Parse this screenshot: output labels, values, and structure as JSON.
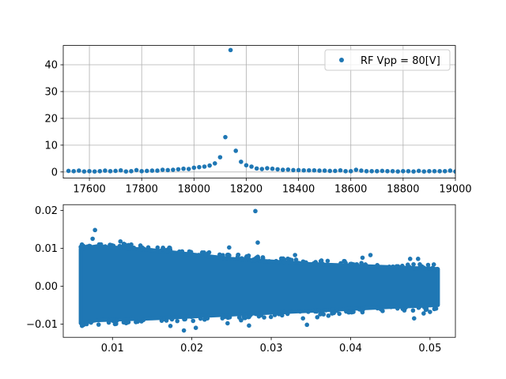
{
  "colors": {
    "series": "#1f77b4",
    "axes": "#000000",
    "grid": "#b0b0b0",
    "legend_border": "#cccccc",
    "background": "#ffffff"
  },
  "chart_data": [
    {
      "type": "scatter",
      "title": "",
      "xlabel": "",
      "ylabel": "",
      "xlim": [
        17500,
        19000
      ],
      "ylim": [
        -2.3,
        47.2
      ],
      "xticks": [
        17600,
        17800,
        18000,
        18200,
        18400,
        18600,
        18800,
        19000
      ],
      "yticks": [
        0,
        10,
        20,
        30,
        40
      ],
      "grid": true,
      "legend_position": "top-right",
      "series": [
        {
          "name": "RF Vpp = 80[V]",
          "marker": "dot",
          "x": [
            17520,
            17540,
            17560,
            17580,
            17600,
            17620,
            17640,
            17660,
            17680,
            17700,
            17720,
            17740,
            17760,
            17780,
            17800,
            17820,
            17840,
            17860,
            17880,
            17900,
            17920,
            17940,
            17960,
            17980,
            18000,
            18020,
            18040,
            18060,
            18080,
            18100,
            18120,
            18140,
            18160,
            18180,
            18200,
            18220,
            18240,
            18260,
            18280,
            18300,
            18320,
            18340,
            18360,
            18380,
            18400,
            18420,
            18440,
            18460,
            18480,
            18500,
            18520,
            18540,
            18560,
            18580,
            18600,
            18620,
            18640,
            18660,
            18680,
            18700,
            18720,
            18740,
            18760,
            18780,
            18800,
            18820,
            18840,
            18860,
            18880,
            18900,
            18920,
            18940,
            18960,
            18980,
            19000
          ],
          "y": [
            0.4,
            0.3,
            0.5,
            0.2,
            0.3,
            0.2,
            0.3,
            0.5,
            0.3,
            0.4,
            0.6,
            0.2,
            0.3,
            0.7,
            0.3,
            0.4,
            0.5,
            0.5,
            0.8,
            0.7,
            0.8,
            1.0,
            1.2,
            1.1,
            1.6,
            1.8,
            2.0,
            2.4,
            3.2,
            5.5,
            13.0,
            45.5,
            7.9,
            3.8,
            2.5,
            2.0,
            1.3,
            1.1,
            1.4,
            1.2,
            1.0,
            0.8,
            0.9,
            0.7,
            0.7,
            0.6,
            0.6,
            0.6,
            0.5,
            0.5,
            0.4,
            0.4,
            0.6,
            0.3,
            0.3,
            0.8,
            0.5,
            0.3,
            0.3,
            0.3,
            0.4,
            0.3,
            0.3,
            0.2,
            0.3,
            0.3,
            0.2,
            0.4,
            0.2,
            0.3,
            0.3,
            0.3,
            0.3,
            0.5,
            0.2
          ]
        }
      ]
    },
    {
      "type": "scatter",
      "title": "",
      "xlabel": "",
      "ylabel": "",
      "xlim": [
        0.0038,
        0.0532
      ],
      "ylim": [
        -0.0135,
        0.0215
      ],
      "xticks": [
        0.01,
        0.02,
        0.03,
        0.04,
        0.05
      ],
      "xtick_labels": [
        "0.01",
        "0.02",
        "0.03",
        "0.04",
        "0.05"
      ],
      "yticks": [
        -0.01,
        0.0,
        0.01,
        0.02
      ],
      "ytick_labels": [
        "−0.01",
        "0.00",
        "0.01",
        "0.02"
      ],
      "grid": false,
      "dense_cloud": {
        "x_range": [
          0.006,
          0.051
        ],
        "upper_envelope": [
          [
            0.006,
            0.0098
          ],
          [
            0.008,
            0.0105
          ],
          [
            0.015,
            0.0095
          ],
          [
            0.025,
            0.0072
          ],
          [
            0.035,
            0.0058
          ],
          [
            0.045,
            0.005
          ],
          [
            0.051,
            0.0045
          ]
        ],
        "lower_envelope": [
          [
            0.006,
            -0.0098
          ],
          [
            0.008,
            -0.009
          ],
          [
            0.015,
            -0.0085
          ],
          [
            0.025,
            -0.0075
          ],
          [
            0.035,
            -0.0065
          ],
          [
            0.045,
            -0.0055
          ],
          [
            0.051,
            -0.005
          ]
        ]
      },
      "outlier_points": [
        [
          0.0078,
          0.0148
        ],
        [
          0.0075,
          0.0125
        ],
        [
          0.028,
          0.0198
        ],
        [
          0.0283,
          0.0115
        ],
        [
          0.019,
          -0.0117
        ],
        [
          0.0173,
          -0.0105
        ],
        [
          0.0205,
          -0.011
        ],
        [
          0.0245,
          -0.0098
        ],
        [
          0.0262,
          -0.009
        ],
        [
          0.0272,
          -0.0104
        ],
        [
          0.0247,
          0.0102
        ],
        [
          0.033,
          0.0082
        ],
        [
          0.034,
          -0.0085
        ],
        [
          0.0358,
          -0.0082
        ],
        [
          0.0372,
          -0.0078
        ],
        [
          0.0415,
          0.0075
        ],
        [
          0.0425,
          0.0082
        ],
        [
          0.0475,
          0.0072
        ],
        [
          0.0485,
          0.0072
        ],
        [
          0.0492,
          -0.0072
        ],
        [
          0.048,
          -0.0085
        ],
        [
          0.05,
          -0.0068
        ],
        [
          0.011,
          0.0118
        ],
        [
          0.0345,
          -0.0102
        ]
      ]
    }
  ]
}
